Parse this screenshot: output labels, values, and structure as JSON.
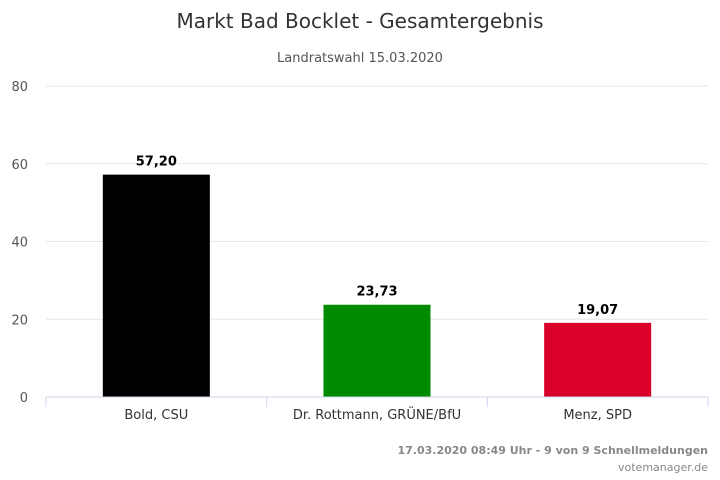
{
  "chart_data": {
    "type": "bar",
    "title": "Markt Bad Bocklet - Gesamtergebnis",
    "subtitle": "Landratswahl 15.03.2020",
    "categories": [
      "Bold, CSU",
      "Dr. Rottmann, GRÜNE/BfU",
      "Menz, SPD"
    ],
    "values": [
      57.2,
      23.73,
      19.07
    ],
    "data_labels": [
      "57,20",
      "23,73",
      "19,07"
    ],
    "colors": [
      "#000000",
      "#008a00",
      "#d9002a"
    ],
    "ylim": [
      0,
      80
    ],
    "yticks": [
      0,
      20,
      40,
      60,
      80
    ],
    "grid": true,
    "legend": "none"
  },
  "footer": {
    "status": "17.03.2020 08:49 Uhr - 9 von 9 Schnellmeldungen",
    "source": "votemanager.de"
  }
}
